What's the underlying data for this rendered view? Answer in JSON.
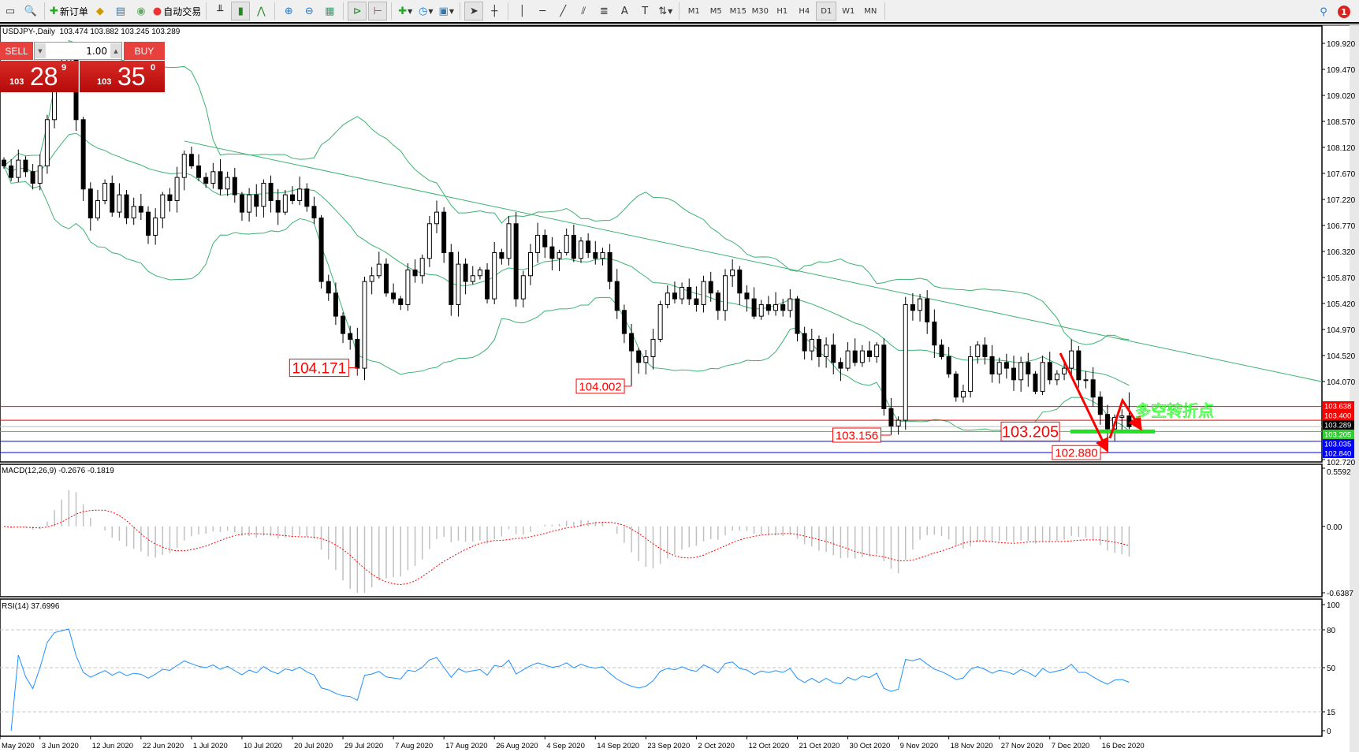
{
  "toolbar": {
    "new_order_label": "新订单",
    "auto_trading_label": "自动交易",
    "timeframes": [
      "M1",
      "M5",
      "M15",
      "M30",
      "H1",
      "H4",
      "D1",
      "W1",
      "MN"
    ],
    "active_timeframe": "D1",
    "notification_count": "1"
  },
  "chart_header": {
    "symbol": "USDJPY-,Daily",
    "ohlc": "103.474 103.882 103.245 103.289"
  },
  "trade_panel": {
    "sell_label": "SELL",
    "buy_label": "BUY",
    "lot": "1.00",
    "bid": {
      "prefix": "103",
      "big": "28",
      "sup": "9"
    },
    "ask": {
      "prefix": "103",
      "big": "35",
      "sup": "0"
    }
  },
  "colors": {
    "bollinger": "#3cb371",
    "trendline": "#3cb371",
    "macd_hist": "#c0c0c0",
    "macd_signal": "#ff0000",
    "rsi": "#1e90ff",
    "annotation": "#ff0000",
    "turn_text": "#33ff33"
  },
  "chart_data": {
    "type": "candlestick",
    "symbol": "USDJPY-",
    "timeframe": "Daily",
    "price_axis_ticks": [
      "109.920",
      "109.470",
      "109.020",
      "108.570",
      "108.120",
      "107.670",
      "107.220",
      "106.770",
      "106.320",
      "105.870",
      "105.420",
      "104.970",
      "104.520",
      "104.070",
      "102.720"
    ],
    "price_range": [
      102.72,
      110.2
    ],
    "date_labels": [
      {
        "bar": -1,
        "label": "May 2020"
      },
      {
        "bar": 5,
        "label": "3 Jun 2020"
      },
      {
        "bar": 12,
        "label": "12 Jun 2020"
      },
      {
        "bar": 19,
        "label": "22 Jun 2020"
      },
      {
        "bar": 26,
        "label": "1 Jul 2020"
      },
      {
        "bar": 33,
        "label": "10 Jul 2020"
      },
      {
        "bar": 40,
        "label": "20 Jul 2020"
      },
      {
        "bar": 47,
        "label": "29 Jul 2020"
      },
      {
        "bar": 54,
        "label": "7 Aug 2020"
      },
      {
        "bar": 61,
        "label": "17 Aug 2020"
      },
      {
        "bar": 68,
        "label": "26 Aug 2020"
      },
      {
        "bar": 75,
        "label": "4 Sep 2020"
      },
      {
        "bar": 82,
        "label": "14 Sep 2020"
      },
      {
        "bar": 89,
        "label": "23 Sep 2020"
      },
      {
        "bar": 96,
        "label": "2 Oct 2020"
      },
      {
        "bar": 103,
        "label": "12 Oct 2020"
      },
      {
        "bar": 110,
        "label": "21 Oct 2020"
      },
      {
        "bar": 117,
        "label": "30 Oct 2020"
      },
      {
        "bar": 124,
        "label": "9 Nov 2020"
      },
      {
        "bar": 131,
        "label": "18 Nov 2020"
      },
      {
        "bar": 138,
        "label": "27 Nov 2020"
      },
      {
        "bar": 145,
        "label": "7 Dec 2020"
      },
      {
        "bar": 152,
        "label": "16 Dec 2020"
      }
    ],
    "close": [
      107.8,
      107.6,
      107.9,
      107.7,
      107.5,
      107.8,
      108.6,
      109.3,
      109.5,
      109.7,
      108.6,
      107.4,
      106.9,
      107.2,
      107.5,
      107.0,
      107.3,
      106.9,
      107.1,
      107.0,
      106.6,
      106.9,
      107.3,
      107.2,
      107.6,
      108.0,
      107.8,
      107.6,
      107.5,
      107.7,
      107.4,
      107.6,
      107.3,
      107.0,
      107.3,
      107.1,
      107.5,
      107.2,
      107.0,
      107.3,
      107.2,
      107.4,
      107.1,
      106.9,
      105.8,
      105.6,
      105.2,
      104.9,
      104.8,
      104.3,
      105.8,
      105.9,
      106.1,
      105.6,
      105.5,
      105.4,
      106.0,
      105.9,
      106.2,
      106.8,
      107.0,
      106.3,
      105.4,
      106.1,
      105.8,
      105.9,
      106.0,
      105.5,
      106.3,
      106.2,
      106.8,
      105.5,
      105.9,
      106.3,
      106.6,
      106.4,
      106.2,
      106.3,
      106.6,
      106.2,
      106.5,
      106.3,
      106.2,
      106.3,
      105.8,
      105.3,
      104.9,
      104.6,
      104.4,
      104.5,
      104.8,
      105.4,
      105.6,
      105.5,
      105.7,
      105.5,
      105.4,
      105.8,
      105.6,
      105.3,
      105.9,
      106.0,
      105.6,
      105.5,
      105.2,
      105.4,
      105.3,
      105.4,
      105.3,
      105.5,
      104.9,
      104.6,
      104.8,
      104.5,
      104.7,
      104.4,
      104.3,
      104.6,
      104.4,
      104.6,
      104.5,
      104.7,
      103.6,
      103.3,
      103.4,
      105.4,
      105.3,
      105.5,
      105.1,
      104.7,
      104.5,
      104.2,
      103.8,
      103.9,
      104.5,
      104.7,
      104.5,
      104.2,
      104.4,
      104.3,
      104.1,
      104.4,
      104.2,
      103.9,
      104.4,
      104.1,
      104.2,
      104.3,
      104.6,
      104.1,
      104.1,
      103.8,
      103.5,
      103.25,
      103.45,
      103.474,
      103.289
    ],
    "last_bar": {
      "open": 103.474,
      "high": 103.882,
      "low": 103.245,
      "close": 103.289
    },
    "marked_lows": [
      {
        "bar": 49,
        "price": 104.171,
        "label": "104.171"
      },
      {
        "bar": 87,
        "price": 104.002,
        "label": "104.002"
      },
      {
        "bar": 123,
        "price": 103.156,
        "label": "103.156"
      },
      {
        "bar": 153,
        "price": 102.88,
        "label": "102.880"
      }
    ],
    "support_label": {
      "price": 103.205,
      "label": "103.205"
    },
    "turn_point_text": "多空转折点",
    "trendline": {
      "from": {
        "bar": 25,
        "price": 108.23
      },
      "to": {
        "bar": 183,
        "price": 104.06
      }
    },
    "horizontal_lines": [
      {
        "price": 103.638,
        "label": "103.638",
        "color": "#ff0000",
        "text": "#ffffff"
      },
      {
        "price": 103.4,
        "label": "103.400",
        "color": "#ff0000",
        "text": "#ffffff"
      },
      {
        "price": 103.289,
        "label": "103.289",
        "color": "#000000",
        "text": "#ffffff",
        "line": "#c0c0c0"
      },
      {
        "price": 103.205,
        "label": "103.205",
        "color": "#32cd32",
        "text": "#ffffff"
      },
      {
        "price": 103.035,
        "label": "103.035",
        "color": "#0000ff",
        "text": "#ffffff"
      },
      {
        "price": 102.84,
        "label": "102.840",
        "color": "#0000ff",
        "text": "#ffffff"
      }
    ],
    "indicators": {
      "bollinger": {
        "period": 20,
        "deviation": 2
      },
      "macd": {
        "label": "MACD(12,26,9) -0.2676 -0.1819",
        "fast": 12,
        "slow": 26,
        "signal": 9,
        "axis_ticks": [
          "0.5592",
          "0.00",
          "-0.6387"
        ],
        "range": [
          -0.6387,
          0.5592
        ]
      },
      "rsi": {
        "label": "RSI(14) 37.6996",
        "period": 14,
        "levels": [
          80,
          50,
          15
        ],
        "axis_ticks": [
          "100",
          "80",
          "50",
          "15",
          "0"
        ],
        "range": [
          0,
          100
        ]
      }
    }
  }
}
